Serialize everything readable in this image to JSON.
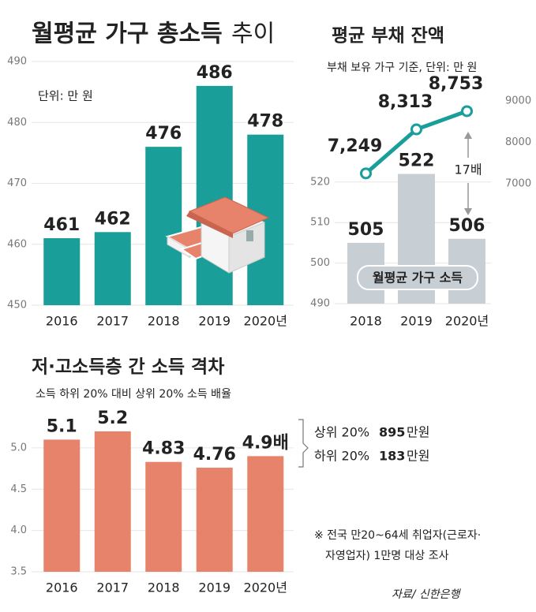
{
  "chart_data": [
    {
      "type": "bar",
      "title": "월평균 가구 총소득",
      "title_suffix": "추이",
      "subtitle": "단위: 만 원",
      "categories": [
        "2016",
        "2017",
        "2018",
        "2019",
        "2020년"
      ],
      "values": [
        461,
        462,
        476,
        486,
        478
      ],
      "color": "#1a9e9a",
      "ylim": [
        450,
        490
      ],
      "yticks": [
        450,
        460,
        470,
        480,
        490
      ],
      "grid": true
    },
    {
      "type": "combo",
      "title": "평균 부채 잔액",
      "subtitle": "부채 보유 가구 기준, 단위: 만 원",
      "categories": [
        "2018",
        "2019",
        "2020년"
      ],
      "series": [
        {
          "name": "월평균 가구 소득",
          "type": "bar",
          "color": "#c7cfd5",
          "values": [
            505,
            522,
            506
          ]
        },
        {
          "type": "line",
          "color": "#1a9e9a",
          "axis": "y2",
          "values": [
            7249,
            8313,
            8753
          ],
          "value_labels": [
            "7,249",
            "8,313",
            "8,753"
          ]
        }
      ],
      "ylim": [
        490,
        540
      ],
      "yticks": [
        490,
        500,
        510,
        520
      ],
      "y2lim": [
        4100,
        9000
      ],
      "y2ticks": [
        7000,
        8000,
        9000
      ],
      "annotation": "17배",
      "grid": true
    },
    {
      "type": "bar",
      "title": "저·고소득층 간 소득 격차",
      "subtitle": "소득 하위 20% 대비 상위 20% 소득 배율",
      "categories": [
        "2016",
        "2017",
        "2018",
        "2019",
        "2020년"
      ],
      "values": [
        5.1,
        5.2,
        4.83,
        4.76,
        4.9
      ],
      "value_labels": [
        "5.1",
        "5.2",
        "4.83",
        "4.76",
        "4.9배"
      ],
      "color": "#e8836b",
      "ylim": [
        3.5,
        5.4
      ],
      "yticks": [
        3.5,
        {
          "value": 4,
          "label": "4.0"
        },
        4.5,
        {
          "value": 5,
          "label": "5.0"
        }
      ],
      "grid": true,
      "annotations": [
        {
          "text": "상위 20%",
          "amount": 895,
          "unit": "만원"
        },
        {
          "text": "하위 20%",
          "amount": 183,
          "unit": "만원"
        }
      ]
    }
  ],
  "note": [
    "※ 전국 만20~64세 취업자(근로자·",
    "자영업자) 1만명 대상 조사"
  ],
  "source": "자료/ 신한은행"
}
